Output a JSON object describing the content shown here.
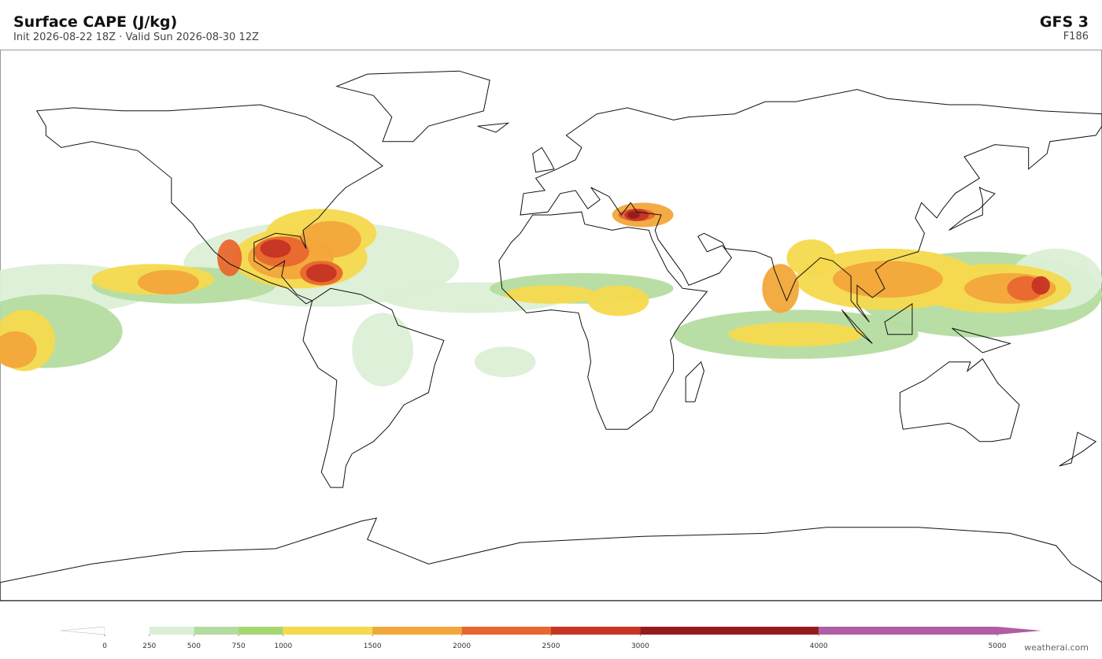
{
  "header": {
    "title": "Surface CAPE  (J/kg)",
    "subtitle": "Init 2026-08-22 18Z   ·   Valid Sun 2026-08-30 12Z",
    "model": "GFS  3",
    "forecast_hour": "F186"
  },
  "colorbar": {
    "ticks": [
      0,
      250,
      500,
      750,
      1000,
      1500,
      2000,
      2500,
      3000,
      4000,
      5000
    ],
    "colors": [
      "#ffffff",
      "#dcefd6",
      "#b5dca0",
      "#a6d672",
      "#f5d94e",
      "#f2a73a",
      "#e8672e",
      "#c63424",
      "#951c1e",
      "#b05da3"
    ]
  },
  "footer": {
    "credit": "weatherai.com"
  }
}
